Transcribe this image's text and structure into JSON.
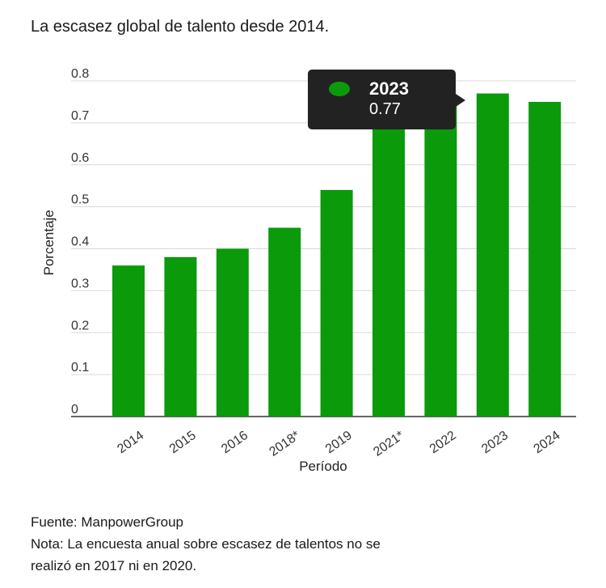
{
  "chart_data": {
    "type": "bar",
    "title": "La escasez global de talento desde 2014.",
    "xlabel": "Período",
    "ylabel": "Porcentaje",
    "categories": [
      "2014",
      "2015",
      "2016",
      "2018*",
      "2019",
      "2021*",
      "2022",
      "2023",
      "2024"
    ],
    "values": [
      0.36,
      0.38,
      0.4,
      0.45,
      0.54,
      0.69,
      0.75,
      0.77,
      0.75
    ],
    "ylim": [
      0,
      0.8
    ],
    "yticks": [
      "0",
      "0.1",
      "0.2",
      "0.3",
      "0.4",
      "0.5",
      "0.6",
      "0.7",
      "0.8"
    ],
    "grid": true,
    "bar_color": "#0a9a0a"
  },
  "tooltip": {
    "year": "2023",
    "value": "0.77",
    "swatch_color": "#0a9a0a"
  },
  "footer": {
    "source": "Fuente: ManpowerGroup",
    "note_line1": "Nota: La encuesta anual sobre escasez de talentos no se",
    "note_line2": "realizó en 2017 ni en 2020."
  }
}
